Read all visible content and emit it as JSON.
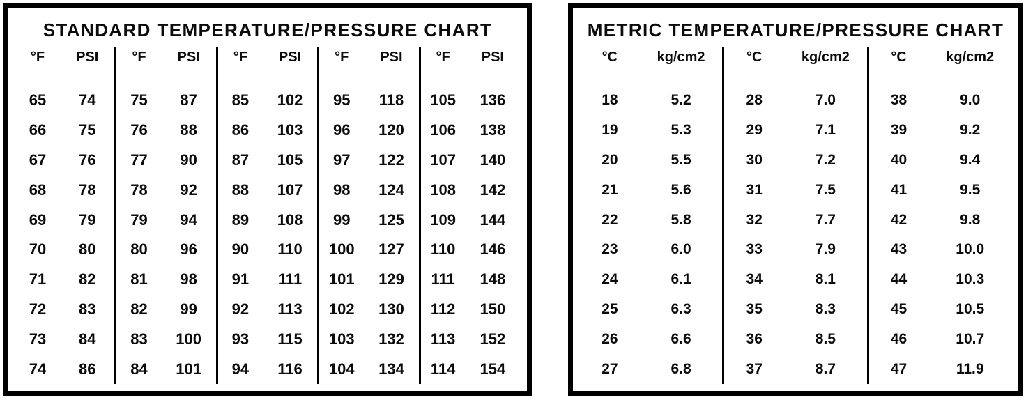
{
  "page": {
    "background": "#ffffff",
    "ink": "#000000"
  },
  "chart_data": [
    {
      "type": "table",
      "title": "STANDARD TEMPERATURE/PRESSURE CHART",
      "column_headers": {
        "temp": "°F",
        "pressure": "PSI"
      },
      "column_groups": 5,
      "rows_per_group": 10,
      "rows": [
        [
          "65",
          "74"
        ],
        [
          "66",
          "75"
        ],
        [
          "67",
          "76"
        ],
        [
          "68",
          "78"
        ],
        [
          "69",
          "79"
        ],
        [
          "70",
          "80"
        ],
        [
          "71",
          "82"
        ],
        [
          "72",
          "83"
        ],
        [
          "73",
          "84"
        ],
        [
          "74",
          "86"
        ],
        [
          "75",
          "87"
        ],
        [
          "76",
          "88"
        ],
        [
          "77",
          "90"
        ],
        [
          "78",
          "92"
        ],
        [
          "79",
          "94"
        ],
        [
          "80",
          "96"
        ],
        [
          "81",
          "98"
        ],
        [
          "82",
          "99"
        ],
        [
          "83",
          "100"
        ],
        [
          "84",
          "101"
        ],
        [
          "85",
          "102"
        ],
        [
          "86",
          "103"
        ],
        [
          "87",
          "105"
        ],
        [
          "88",
          "107"
        ],
        [
          "89",
          "108"
        ],
        [
          "90",
          "110"
        ],
        [
          "91",
          "111"
        ],
        [
          "92",
          "113"
        ],
        [
          "93",
          "115"
        ],
        [
          "94",
          "116"
        ],
        [
          "95",
          "118"
        ],
        [
          "96",
          "120"
        ],
        [
          "97",
          "122"
        ],
        [
          "98",
          "124"
        ],
        [
          "99",
          "125"
        ],
        [
          "100",
          "127"
        ],
        [
          "101",
          "129"
        ],
        [
          "102",
          "130"
        ],
        [
          "103",
          "132"
        ],
        [
          "104",
          "134"
        ],
        [
          "105",
          "136"
        ],
        [
          "106",
          "138"
        ],
        [
          "107",
          "140"
        ],
        [
          "108",
          "142"
        ],
        [
          "109",
          "144"
        ],
        [
          "110",
          "146"
        ],
        [
          "111",
          "148"
        ],
        [
          "112",
          "150"
        ],
        [
          "113",
          "152"
        ],
        [
          "114",
          "154"
        ]
      ]
    },
    {
      "type": "table",
      "title": "METRIC TEMPERATURE/PRESSURE CHART",
      "column_headers": {
        "temp": "°C",
        "pressure": "kg/cm2"
      },
      "column_groups": 3,
      "rows_per_group": 10,
      "rows": [
        [
          "18",
          "5.2"
        ],
        [
          "19",
          "5.3"
        ],
        [
          "20",
          "5.5"
        ],
        [
          "21",
          "5.6"
        ],
        [
          "22",
          "5.8"
        ],
        [
          "23",
          "6.0"
        ],
        [
          "24",
          "6.1"
        ],
        [
          "25",
          "6.3"
        ],
        [
          "26",
          "6.6"
        ],
        [
          "27",
          "6.8"
        ],
        [
          "28",
          "7.0"
        ],
        [
          "29",
          "7.1"
        ],
        [
          "30",
          "7.2"
        ],
        [
          "31",
          "7.5"
        ],
        [
          "32",
          "7.7"
        ],
        [
          "33",
          "7.9"
        ],
        [
          "34",
          "8.1"
        ],
        [
          "35",
          "8.3"
        ],
        [
          "36",
          "8.5"
        ],
        [
          "37",
          "8.7"
        ],
        [
          "38",
          "9.0"
        ],
        [
          "39",
          "9.2"
        ],
        [
          "40",
          "9.4"
        ],
        [
          "41",
          "9.5"
        ],
        [
          "42",
          "9.8"
        ],
        [
          "43",
          "10.0"
        ],
        [
          "44",
          "10.3"
        ],
        [
          "45",
          "10.5"
        ],
        [
          "46",
          "10.7"
        ],
        [
          "47",
          "11.9"
        ]
      ]
    }
  ]
}
